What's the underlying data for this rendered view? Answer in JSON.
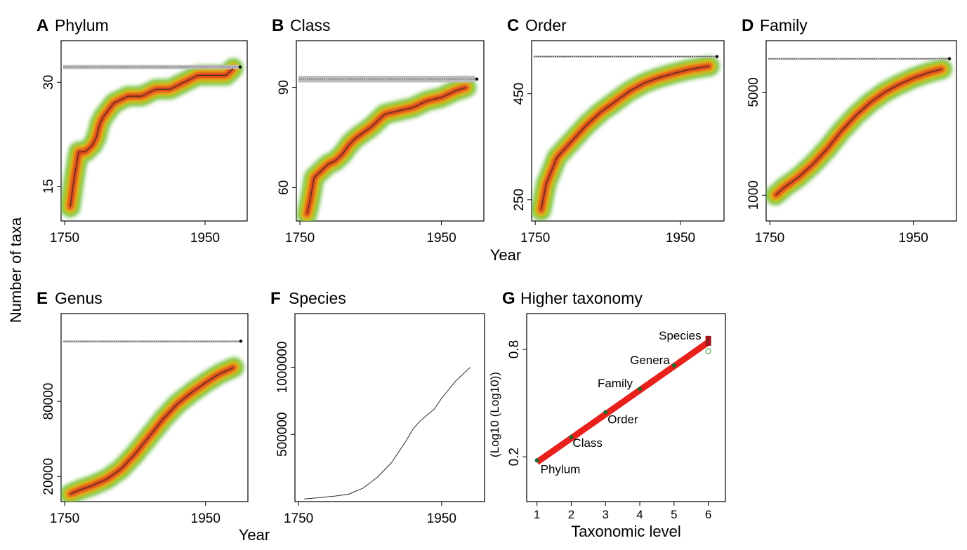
{
  "figure": {
    "shared_ylabel": "Number of taxa",
    "shared_xlabel_top": "Year",
    "shared_xlabel_bottom": "Year"
  },
  "colors": {
    "heat_outer": "#5fb62e",
    "heat_mid": "#f2e21a",
    "heat_inner": "#f09018",
    "heat_core": "#d7281f",
    "trace": "#2a2a2a",
    "asymptote_band": "#bdbdbd",
    "regression": "#e8211d",
    "point": "#1a6b2c"
  },
  "chart_data": [
    {
      "id": "A",
      "letter": "A",
      "title": "Phylum",
      "type": "line",
      "xlim": [
        1745,
        2010
      ],
      "ylim": [
        10,
        36
      ],
      "xticks": [
        1750,
        1950
      ],
      "yticks": [
        15,
        30
      ],
      "asymptote": 32.2,
      "asymptote_band": [
        31.9,
        32.5
      ],
      "heatmap": true,
      "series": [
        {
          "x": [
            1758,
            1762,
            1765,
            1770,
            1780,
            1790,
            1795,
            1800,
            1805,
            1820,
            1840,
            1860,
            1880,
            1900,
            1920,
            1940,
            1960,
            1980,
            1990
          ],
          "y": [
            12,
            15,
            17,
            20,
            20,
            21,
            22,
            24,
            25,
            27,
            28,
            28,
            29,
            29,
            30,
            31,
            31,
            31,
            32
          ]
        }
      ]
    },
    {
      "id": "B",
      "letter": "B",
      "title": "Class",
      "type": "line",
      "xlim": [
        1745,
        2010
      ],
      "ylim": [
        50,
        104
      ],
      "xticks": [
        1750,
        1950
      ],
      "yticks": [
        60,
        90
      ],
      "asymptote": 92.5,
      "asymptote_band": [
        91.5,
        93.5
      ],
      "heatmap": true,
      "series": [
        {
          "x": [
            1760,
            1765,
            1770,
            1780,
            1790,
            1800,
            1810,
            1820,
            1830,
            1850,
            1870,
            1890,
            1910,
            1930,
            1950,
            1970,
            1985
          ],
          "y": [
            52,
            57,
            63,
            65,
            67,
            68,
            70,
            73,
            75,
            78,
            82,
            83,
            84,
            86,
            87,
            89,
            90
          ]
        }
      ]
    },
    {
      "id": "C",
      "letter": "C",
      "title": "Order",
      "type": "line",
      "xlim": [
        1745,
        2010
      ],
      "ylim": [
        210,
        550
      ],
      "xticks": [
        1750,
        1950
      ],
      "yticks": [
        250,
        450
      ],
      "asymptote": 520,
      "asymptote_band": [
        518,
        522
      ],
      "heatmap": true,
      "series": [
        {
          "x": [
            1758,
            1765,
            1780,
            1800,
            1820,
            1840,
            1860,
            1880,
            1900,
            1920,
            1940,
            1960,
            1980,
            1990
          ],
          "y": [
            230,
            280,
            330,
            360,
            390,
            415,
            435,
            455,
            470,
            480,
            488,
            495,
            500,
            502
          ]
        }
      ]
    },
    {
      "id": "D",
      "letter": "D",
      "title": "Family",
      "type": "line",
      "xlim": [
        1745,
        2010
      ],
      "ylim": [
        0,
        7000
      ],
      "xticks": [
        1750,
        1950
      ],
      "yticks": [
        1000,
        5000
      ],
      "asymptote": 6300,
      "asymptote_band": [
        6270,
        6330
      ],
      "heatmap": true,
      "series": [
        {
          "x": [
            1758,
            1770,
            1790,
            1810,
            1830,
            1850,
            1870,
            1890,
            1910,
            1930,
            1950,
            1970,
            1990
          ],
          "y": [
            1000,
            1300,
            1700,
            2200,
            2800,
            3500,
            4100,
            4600,
            5000,
            5300,
            5550,
            5750,
            5900
          ]
        }
      ]
    },
    {
      "id": "E",
      "letter": "E",
      "title": "Genus",
      "type": "line",
      "xlim": [
        1745,
        2010
      ],
      "ylim": [
        0,
        150000
      ],
      "xticks": [
        1750,
        1950
      ],
      "yticks": [
        20000,
        80000
      ],
      "asymptote": 128000,
      "asymptote_band": [
        127500,
        128500
      ],
      "heatmap": true,
      "series": [
        {
          "x": [
            1758,
            1770,
            1790,
            1810,
            1830,
            1850,
            1870,
            1890,
            1910,
            1930,
            1950,
            1970,
            1990
          ],
          "y": [
            6000,
            9000,
            13000,
            18000,
            26000,
            38000,
            52000,
            66000,
            78000,
            87000,
            95000,
            102000,
            107000
          ]
        }
      ]
    },
    {
      "id": "F",
      "letter": "F",
      "title": "Species",
      "type": "line",
      "xlim": [
        1745,
        2010
      ],
      "ylim": [
        0,
        1400000
      ],
      "xticks": [
        1750,
        1950
      ],
      "yticks": [
        500000,
        1000000
      ],
      "heatmap": false,
      "series": [
        {
          "x": [
            1758,
            1780,
            1800,
            1820,
            1840,
            1860,
            1880,
            1900,
            1910,
            1920,
            1940,
            1950,
            1970,
            1990
          ],
          "y": [
            20000,
            30000,
            40000,
            55000,
            100000,
            180000,
            290000,
            450000,
            540000,
            600000,
            690000,
            770000,
            900000,
            1000000
          ]
        }
      ]
    },
    {
      "id": "G",
      "letter": "G",
      "title": "Higher taxonomy",
      "type": "scatter",
      "xlabel": "Taxonomic level",
      "ylabel": "(Log10 (Log10))",
      "xlim": [
        0.7,
        6.5
      ],
      "ylim": [
        -0.05,
        1.0
      ],
      "xticks": [
        1,
        2,
        3,
        4,
        5,
        6
      ],
      "yticks": [
        0.2,
        0.8
      ],
      "regression": {
        "x": [
          1,
          6
        ],
        "y": [
          0.17,
          0.84
        ]
      },
      "points": [
        {
          "label": "Phylum",
          "x": 1,
          "y": 0.18
        },
        {
          "label": "Class",
          "x": 2,
          "y": 0.31
        },
        {
          "label": "Order",
          "x": 3,
          "y": 0.45
        },
        {
          "label": "Family",
          "x": 4,
          "y": 0.58
        },
        {
          "label": "Genera",
          "x": 5,
          "y": 0.71
        },
        {
          "label": "Species",
          "x": 6,
          "y": 0.84
        }
      ],
      "predicted_point": {
        "x": 6,
        "y": 0.79
      }
    }
  ]
}
